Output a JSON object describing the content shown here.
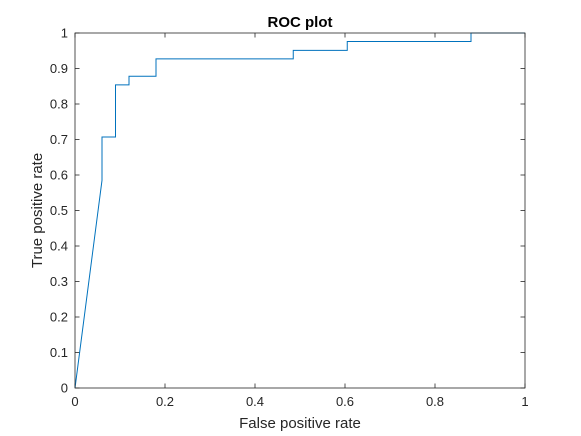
{
  "chart_data": {
    "type": "line",
    "title": "ROC plot",
    "xlabel": "False positive rate",
    "ylabel": "True positive rate",
    "xlim": [
      0,
      1
    ],
    "ylim": [
      0,
      1
    ],
    "grid": false,
    "x_ticks": [
      "0",
      "0.2",
      "0.4",
      "0.6",
      "0.8",
      "1"
    ],
    "y_ticks": [
      "0",
      "0.1",
      "0.2",
      "0.3",
      "0.4",
      "0.5",
      "0.6",
      "0.7",
      "0.8",
      "0.9",
      "1"
    ],
    "series": [
      {
        "color": "#0072BD",
        "x": [
          0,
          0.06,
          0.06,
          0.09,
          0.09,
          0.12,
          0.12,
          0.18,
          0.18,
          0.485,
          0.485,
          0.605,
          0.605,
          0.88,
          0.88,
          1
        ],
        "y": [
          0,
          0.585,
          0.707,
          0.707,
          0.854,
          0.854,
          0.878,
          0.878,
          0.927,
          0.927,
          0.951,
          0.951,
          0.976,
          0.976,
          1,
          1
        ]
      }
    ]
  }
}
